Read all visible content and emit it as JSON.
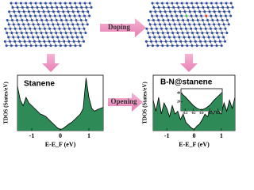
{
  "labels": {
    "doping": "Doping",
    "opening": "Opening"
  },
  "chart_data": [
    {
      "type": "area",
      "title": "Stanene",
      "xlabel": "E-E$_F$ (eV)",
      "display_xlabel": "E-E_F (eV)",
      "ylabel": "TDOS (States/eV)",
      "color": "#2e8b57",
      "x": [
        -1.5,
        -1.4,
        -1.3,
        -1.2,
        -1.1,
        -1.0,
        -0.9,
        -0.8,
        -0.7,
        -0.6,
        -0.5,
        -0.4,
        -0.3,
        -0.2,
        -0.1,
        0.0,
        0.1,
        0.2,
        0.3,
        0.4,
        0.5,
        0.6,
        0.7,
        0.8,
        0.9,
        1.0,
        1.1,
        1.2,
        1.3,
        1.4,
        1.5
      ],
      "values": [
        0.8,
        0.55,
        0.45,
        0.6,
        0.5,
        0.45,
        0.4,
        0.35,
        0.3,
        0.28,
        0.25,
        0.2,
        0.15,
        0.1,
        0.05,
        0.02,
        0.04,
        0.08,
        0.12,
        0.15,
        0.2,
        0.25,
        0.3,
        0.4,
        0.95,
        0.6,
        0.4,
        0.35,
        0.38,
        0.4,
        0.42
      ],
      "xlim": [
        -1.5,
        1.5
      ],
      "ylim": [
        0,
        1
      ],
      "xticks": [
        -1,
        0,
        1
      ]
    },
    {
      "type": "area",
      "title": "B-N@stanene",
      "display_xlabel": "E-E_F (eV)",
      "ylabel": "TDOS (States/eV)",
      "color": "#2e8b57",
      "x": [
        -1.5,
        -1.4,
        -1.3,
        -1.2,
        -1.1,
        -1.0,
        -0.9,
        -0.8,
        -0.7,
        -0.6,
        -0.5,
        -0.4,
        -0.3,
        -0.2,
        -0.1,
        0.0,
        0.1,
        0.2,
        0.3,
        0.4,
        0.5,
        0.6,
        0.7,
        0.8,
        0.9,
        1.0,
        1.1,
        1.2,
        1.3,
        1.4,
        1.5
      ],
      "values": [
        0.55,
        0.35,
        0.6,
        0.3,
        0.5,
        0.4,
        0.25,
        0.45,
        0.3,
        0.35,
        0.2,
        0.3,
        0.15,
        0.1,
        0.05,
        0.02,
        0.08,
        0.12,
        0.2,
        0.3,
        0.25,
        0.4,
        0.3,
        0.45,
        0.35,
        0.3,
        0.5,
        0.35,
        0.55,
        0.4,
        0.6
      ],
      "xlim": [
        -1.5,
        1.5
      ],
      "ylim": [
        0,
        1
      ],
      "xticks": [
        -1,
        0,
        1
      ]
    },
    {
      "type": "area",
      "color": "#2e8b57",
      "x": [
        -0.25,
        -0.2,
        -0.15,
        -0.1,
        -0.05,
        0.0,
        0.05,
        0.1,
        0.15,
        0.2,
        0.25
      ],
      "values": [
        40,
        32,
        22,
        12,
        5,
        2,
        6,
        13,
        24,
        33,
        42
      ],
      "xlim": [
        -0.25,
        0.25
      ],
      "ylim": [
        0,
        50
      ],
      "xticks": [
        -0.2,
        -0.1,
        {
          "value": 0,
          "label": "0.0"
        },
        0.1,
        0.2
      ],
      "yticks": [
        20,
        40
      ]
    }
  ]
}
